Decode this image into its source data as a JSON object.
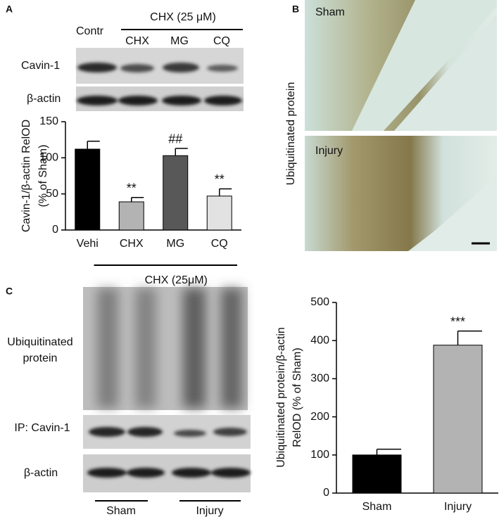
{
  "panel_a": {
    "label": "A",
    "control": "Contr",
    "treatment": "CHX (25 μM)",
    "lanes": [
      "CHX",
      "MG",
      "CQ"
    ],
    "blots": [
      "Cavin-1",
      "β-actin"
    ]
  },
  "panel_b": {
    "label": "B",
    "stain": "Ubiquitinated protein",
    "images": [
      "Sham",
      "Injury"
    ]
  },
  "panel_c": {
    "label": "C",
    "blots": [
      [
        "Ubiquitinated",
        "protein"
      ],
      [
        "IP: Cavin-1"
      ],
      [
        "β-actin"
      ]
    ],
    "groups": [
      "Sham",
      "Injury"
    ]
  },
  "chart_data": [
    {
      "type": "bar",
      "ylabel": [
        "Cavin-1/β-actin RelOD",
        "(% of Sham)"
      ],
      "categories": [
        "Vehi",
        "CHX",
        "MG",
        "CQ"
      ],
      "values": [
        112,
        39,
        103,
        47
      ],
      "errors": [
        11,
        6,
        10,
        10
      ],
      "colors": [
        "#000000",
        "#b3b3b3",
        "#585858",
        "#e2e2e2"
      ],
      "annotations": [
        null,
        "**",
        "##",
        "**"
      ],
      "group_label": "CHX (25μM)",
      "ylim": [
        0,
        150
      ],
      "yticks": [
        0,
        50,
        100,
        150
      ]
    },
    {
      "type": "bar",
      "ylabel": [
        "Ubiquitinated protein/β-actin",
        "RelOD (% of Sham)"
      ],
      "categories": [
        "Sham",
        "Injury"
      ],
      "values": [
        100,
        388
      ],
      "errors": [
        15,
        37
      ],
      "colors": [
        "#000000",
        "#b3b3b3"
      ],
      "annotations": [
        null,
        "***"
      ],
      "ylim": [
        0,
        500
      ],
      "yticks": [
        0,
        100,
        200,
        300,
        400,
        500
      ]
    }
  ]
}
